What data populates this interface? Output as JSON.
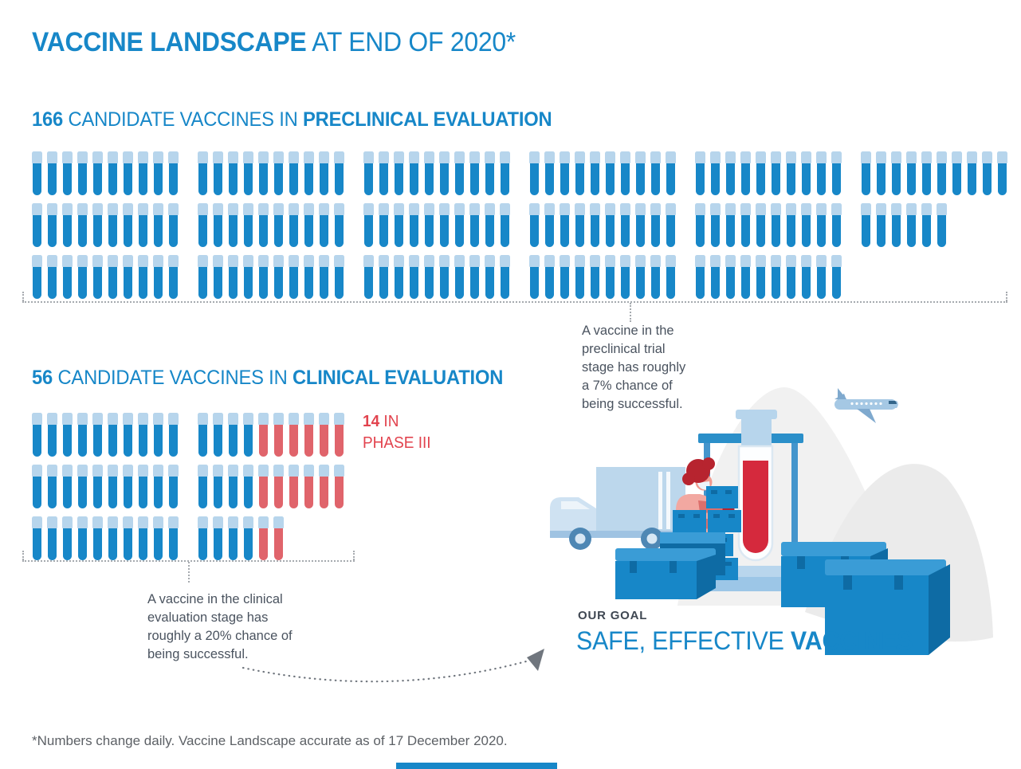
{
  "title": {
    "bold": "VACCINE LANDSCAPE",
    "light": " AT END OF 2020*"
  },
  "preclinical": {
    "count": "166",
    "mid": " CANDIDATE VACCINES IN ",
    "emphasis": "PRECLINICAL EVALUATION",
    "rows": [
      [
        {
          "blue": 10
        },
        {
          "blue": 10
        },
        {
          "blue": 10
        },
        {
          "blue": 10
        },
        {
          "blue": 10
        },
        {
          "blue": 10
        }
      ],
      [
        {
          "blue": 10
        },
        {
          "blue": 10
        },
        {
          "blue": 10
        },
        {
          "blue": 10
        },
        {
          "blue": 10
        },
        {
          "blue": 6
        }
      ],
      [
        {
          "blue": 10
        },
        {
          "blue": 10
        },
        {
          "blue": 10
        },
        {
          "blue": 10
        },
        {
          "blue": 10
        }
      ]
    ],
    "note": "A vaccine in the\npreclinical trial\nstage has roughly\na 7% chance of\nbeing successful."
  },
  "clinical": {
    "count": "56",
    "mid": " CANDIDATE VACCINES IN ",
    "emphasis": "CLINICAL EVALUATION",
    "rows": [
      [
        {
          "blue": 10
        },
        {
          "blue": 4,
          "red": 6
        }
      ],
      [
        {
          "blue": 10
        },
        {
          "blue": 4,
          "red": 6
        }
      ],
      [
        {
          "blue": 10
        },
        {
          "blue": 4,
          "red": 2
        }
      ]
    ],
    "phase3": {
      "count": "14",
      "suffix": " IN",
      "line2": "PHASE III"
    },
    "note": "A vaccine in the clinical\nevaluation stage has\nroughly a 20% chance of\nbeing successful."
  },
  "goal": {
    "kicker": "OUR GOAL",
    "light": "SAFE, EFFECTIVE ",
    "bold": "VACCINES"
  },
  "footnote": "*Numbers change daily. Vaccine Landscape accurate as of 17 December 2020.",
  "colors": {
    "blue": "#1787C8",
    "cap": "#B7D5EC",
    "red": "#E0646B",
    "redText": "#E2434E",
    "grayText": "#4A535F",
    "goalText": "#3F4752",
    "footnoteText": "#5D6166",
    "dotted": "#A6AAAF",
    "arrow": "#70767E",
    "illoLightBlue": "#BCD7EC",
    "illoLighterBlue": "#CFE2F2",
    "boxBlue": "#1787C8",
    "boxDark": "#0E6BA4",
    "boxLid": "#3A9CD6",
    "illoRed": "#D5293D",
    "skin": "#F09A90",
    "hair": "#B7242F",
    "shirt": "#F2A8A1",
    "arm": "#DC6F6C",
    "wheel": "#4E87B4",
    "wheelHub": "#D7E7F4",
    "blob": "#F1F1F1",
    "blob2": "#EBEBEB",
    "plane": "#A5C8E4",
    "planeDark": "#7FA9CE",
    "stand": "#4495CC",
    "standBar": "#2B8FC9",
    "baseLight": "#B9D6ED",
    "baseMid": "#9CC6E7",
    "glass": "#DCE8F2"
  },
  "chart_data": {
    "type": "pictogram",
    "title": "VACCINE LANDSCAPE AT END OF 2020*",
    "unit": "1 test tube = 1 candidate vaccine",
    "series": [
      {
        "name": "Candidate vaccines in preclinical evaluation",
        "value": 166,
        "color": "#1787C8"
      },
      {
        "name": "Candidate vaccines in clinical evaluation",
        "value": 56,
        "color": "#1787C8"
      },
      {
        "name": "Clinical candidates in Phase III",
        "value": 14,
        "color": "#E0646B"
      }
    ],
    "layout": {
      "preclinical_tubes_per_row": [
        60,
        56,
        50
      ],
      "clinical_tubes_per_row": [
        20,
        20,
        16
      ],
      "phase3_red_tubes_per_row": [
        6,
        6,
        2
      ],
      "group_size": 10
    },
    "annotations": [
      "A vaccine in the preclinical trial stage has roughly a 7% chance of being successful.",
      "A vaccine in the clinical evaluation stage has roughly a 20% chance of being successful.",
      "OUR GOAL: SAFE, EFFECTIVE VACCINES",
      "*Numbers change daily. Vaccine Landscape accurate as of 17 December 2020."
    ]
  }
}
